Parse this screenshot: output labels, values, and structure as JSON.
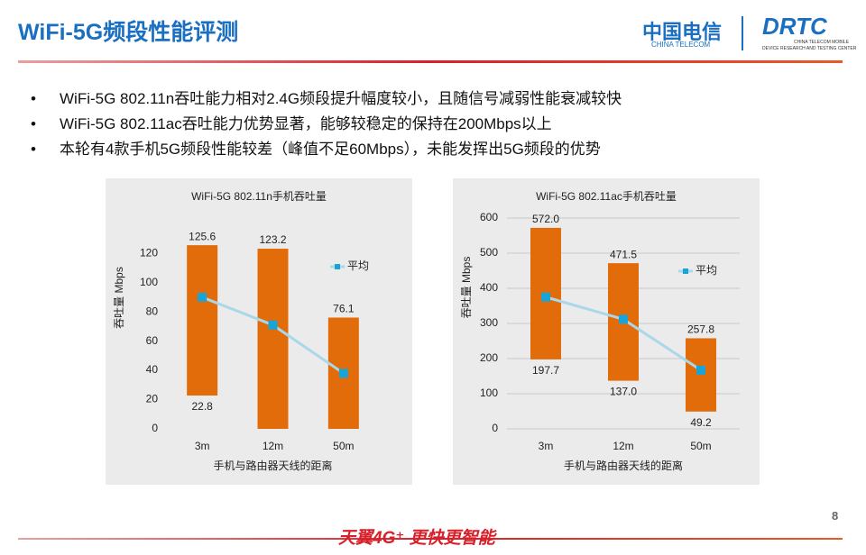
{
  "header": {
    "title": "WiFi-5G频段性能评测",
    "logo_cn": "中国电信",
    "logo_en": "CHINA TELECOM",
    "logo2": "DRTC",
    "logo2_line1": "CHINA TELECOM MOBILE",
    "logo2_line2": "DEVICE RESEARCH AND TESTING CENTER"
  },
  "bullets": [
    "WiFi-5G 802.11n吞吐能力相对2.4G频段提升幅度较小，且随信号减弱性能衰减较快",
    "WiFi-5G 802.11ac吞吐能力优势显著，能够较稳定的保持在200Mbps以上",
    "本轮有4款手机5G频段性能较差（峰值不足60Mbps），未能发挥出5G频段的优势"
  ],
  "chart_data": [
    {
      "type": "range-bar",
      "title": "WiFi-5G 802.11n手机吞吐量",
      "y_label": "吞吐量 Mbps",
      "x_label": "手机与路由器天线的距离",
      "categories": [
        "3m",
        "12m",
        "50m"
      ],
      "high": [
        125.6,
        123.2,
        76.1
      ],
      "low": [
        22.8,
        0,
        0
      ],
      "low_labels": [
        "22.8",
        null,
        null
      ],
      "bar_color": "#e36c0a",
      "series": [
        {
          "name": "平均",
          "color": "#1aa3d6",
          "values": [
            90,
            71,
            38
          ]
        }
      ],
      "ylim": [
        0,
        130
      ],
      "yticks": [
        0,
        20,
        40,
        60,
        80,
        100,
        120
      ],
      "grid": false
    },
    {
      "type": "range-bar",
      "title": "WiFi-5G 802.11ac手机吞吐量",
      "y_label": "吞吐量 Mbps",
      "x_label": "手机与路由器天线的距离",
      "categories": [
        "3m",
        "12m",
        "50m"
      ],
      "high": [
        572,
        471.5,
        257.8
      ],
      "high_labels": [
        "572.0",
        "471.5",
        "257.8"
      ],
      "low": [
        197.7,
        137,
        49.2
      ],
      "low_labels": [
        "197.7",
        "137.0",
        "49.2"
      ],
      "bar_color": "#e36c0a",
      "series": [
        {
          "name": "平均",
          "color": "#1aa3d6",
          "values": [
            375,
            312,
            167
          ]
        }
      ],
      "ylim": [
        0,
        600
      ],
      "yticks": [
        0,
        100,
        200,
        300,
        400,
        500,
        600
      ],
      "grid": true
    }
  ],
  "footer": {
    "slogan": "天翼4G⁺ 更快更智能",
    "page": "8"
  }
}
